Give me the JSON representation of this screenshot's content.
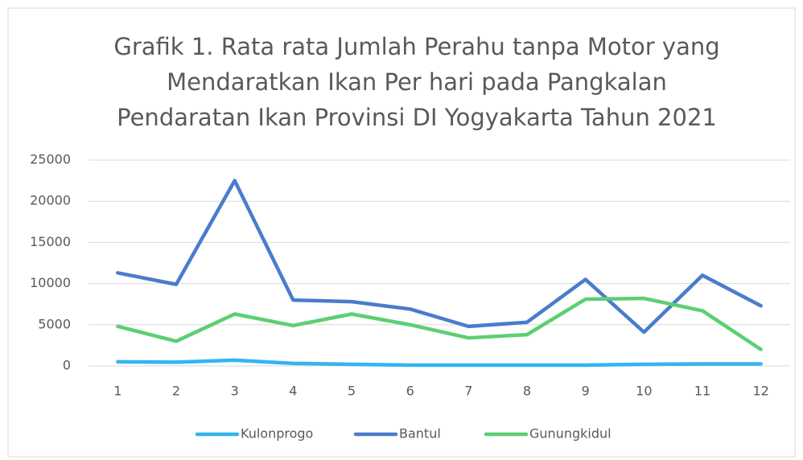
{
  "chart_data": {
    "type": "line",
    "title": [
      "Grafik 1. Rata rata Jumlah Perahu tanpa Motor yang",
      "Mendaratkan Ikan Per hari pada Pangkalan",
      "Pendaratan Ikan Provinsi DI Yogyakarta Tahun 2021"
    ],
    "categories": [
      "1",
      "2",
      "3",
      "4",
      "5",
      "6",
      "7",
      "8",
      "9",
      "10",
      "11",
      "12"
    ],
    "series": [
      {
        "name": "Kulonprogo",
        "color": "#33b5f0",
        "values": [
          500,
          450,
          700,
          300,
          200,
          100,
          100,
          100,
          100,
          200,
          250,
          250
        ]
      },
      {
        "name": "Bantul",
        "color": "#4a7ccc",
        "values": [
          11300,
          9900,
          22500,
          8000,
          7800,
          6900,
          4800,
          5300,
          10500,
          4100,
          11000,
          7300
        ]
      },
      {
        "name": "Gunungkidul",
        "color": "#5ccf72",
        "values": [
          4800,
          3000,
          6300,
          4900,
          6300,
          5000,
          3400,
          3800,
          8100,
          8200,
          6700,
          2000
        ]
      }
    ],
    "ylim": [
      0,
      25000
    ],
    "yticks": [
      0,
      5000,
      10000,
      15000,
      20000,
      25000
    ],
    "grid": true,
    "legend": "bottom"
  }
}
